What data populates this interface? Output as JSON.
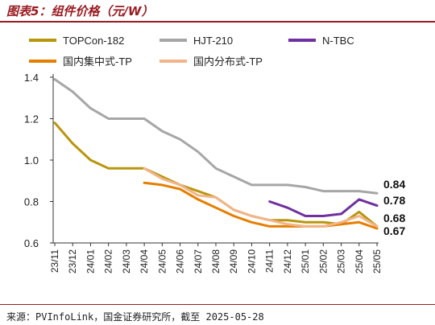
{
  "header": {
    "title": "图表5：组件价格（元/W）"
  },
  "footer": {
    "source": "来源：PVInfoLink，国金证券研究所，截至 2025-05-28"
  },
  "chart_data": {
    "type": "line",
    "x": [
      "23/11",
      "23/12",
      "24/01",
      "24/02",
      "24/03",
      "24/04",
      "24/05",
      "24/06",
      "24/07",
      "24/08",
      "24/09",
      "24/10",
      "24/11",
      "24/12",
      "25/01",
      "25/02",
      "25/03",
      "25/04",
      "25/05"
    ],
    "ylim": [
      0.6,
      1.4
    ],
    "yticks": [
      0.6,
      0.8,
      1.0,
      1.2,
      1.4
    ],
    "grid": false,
    "legend": "top",
    "series": [
      {
        "name": "TOPCon-182",
        "color": "#b8960c",
        "values": [
          1.18,
          1.08,
          1.0,
          0.96,
          0.96,
          0.96,
          0.92,
          0.88,
          0.85,
          0.82,
          0.76,
          0.73,
          0.71,
          0.71,
          0.7,
          0.7,
          0.69,
          0.75,
          0.68
        ]
      },
      {
        "name": "HJT-210",
        "color": "#a6a6a6",
        "values": [
          1.39,
          1.33,
          1.25,
          1.2,
          1.2,
          1.2,
          1.14,
          1.1,
          1.04,
          0.96,
          0.92,
          0.88,
          0.88,
          0.88,
          0.87,
          0.85,
          0.85,
          0.85,
          0.84
        ]
      },
      {
        "name": "N-TBC",
        "color": "#7030a0",
        "values": [
          null,
          null,
          null,
          null,
          null,
          null,
          null,
          null,
          null,
          null,
          null,
          null,
          0.8,
          0.77,
          0.73,
          0.73,
          0.74,
          0.81,
          0.78
        ]
      },
      {
        "name": "国内集中式-TP",
        "color": "#e67e00",
        "values": [
          null,
          null,
          null,
          null,
          null,
          0.89,
          0.88,
          0.86,
          0.81,
          0.77,
          0.73,
          0.7,
          0.68,
          0.68,
          0.68,
          0.68,
          0.69,
          0.7,
          0.67
        ]
      },
      {
        "name": "国内分布式-TP",
        "color": "#f2b48a",
        "values": [
          null,
          null,
          null,
          null,
          null,
          0.96,
          0.91,
          0.88,
          0.83,
          0.82,
          0.76,
          0.73,
          0.71,
          0.69,
          0.68,
          0.68,
          0.7,
          0.73,
          0.68
        ]
      }
    ],
    "end_labels": [
      "0.84",
      "0.78",
      "0.68",
      "0.67"
    ]
  }
}
